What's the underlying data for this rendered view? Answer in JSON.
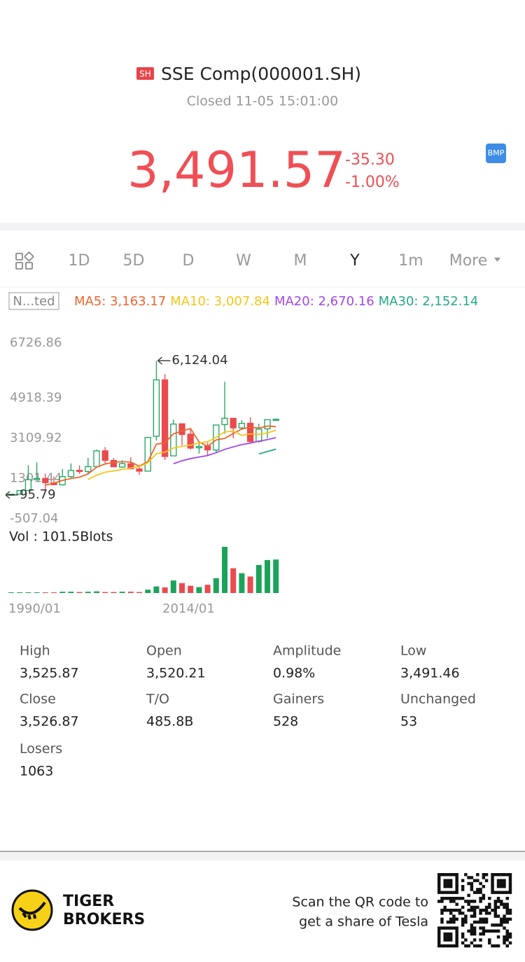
{
  "header": {
    "badge": "SH",
    "title": "SSE Comp(000001.SH)",
    "status": "Closed 11-05 15:01:00",
    "price": "3,491.57",
    "change": "-35.30",
    "change_pct": "-1.00%",
    "bmp": "BMP"
  },
  "tabs": [
    "1D",
    "5D",
    "D",
    "W",
    "M",
    "Y",
    "1m",
    "More"
  ],
  "active_tab": 5,
  "chart_data": {
    "type": "candlestick",
    "adjust_label": "N...ted",
    "ma": [
      {
        "label": "MA5: 3,163.17",
        "color": "#f0642d",
        "values": [
          null,
          null,
          null,
          null,
          536,
          621,
          746,
          829,
          892,
          1036,
          1339,
          1485,
          1558,
          1588,
          1568,
          1385,
          1591,
          2372,
          2437,
          2839,
          2969,
          3073,
          2475,
          2274,
          2565,
          2632,
          2853,
          3061,
          3136,
          3099,
          3188,
          3163
        ]
      },
      {
        "label": "MA10: 3,007.84",
        "color": "#f5c518",
        "values": [
          null,
          null,
          null,
          null,
          null,
          null,
          null,
          null,
          null,
          786,
          980,
          1116,
          1173,
          1240,
          1302,
          1362,
          1538,
          1945,
          2012,
          2204,
          2277,
          2332,
          2424,
          2485,
          2682,
          2920,
          2963,
          2768,
          2835,
          2812,
          2879,
          3008
        ]
      },
      {
        "label": "MA20: 2,670.16",
        "color": "#a347e6",
        "values": [
          null,
          null,
          null,
          null,
          null,
          null,
          null,
          null,
          null,
          null,
          null,
          null,
          null,
          null,
          null,
          null,
          null,
          null,
          null,
          1495,
          1629,
          1724,
          1798,
          1863,
          1992,
          2141,
          2251,
          2356,
          2424,
          2508,
          2578,
          2670
        ]
      },
      {
        "label": "MA30: 2,152.14",
        "color": "#23a88a",
        "values": [
          null,
          null,
          null,
          null,
          null,
          null,
          null,
          null,
          null,
          null,
          null,
          null,
          null,
          null,
          null,
          null,
          null,
          null,
          null,
          null,
          null,
          null,
          null,
          null,
          null,
          null,
          null,
          null,
          null,
          1934,
          2045,
          2152
        ]
      }
    ],
    "ylim": [
      -507.04,
      6726.86
    ],
    "yticks": [
      6726.86,
      4918.39,
      3109.92,
      1301.44,
      -507.04
    ],
    "max_label": "6,124.04",
    "min_label": "95.79",
    "up_color": "#1ca35b",
    "down_color": "#ea4b4f",
    "candles": {
      "open": [
        96,
        127,
        293,
        780,
        833,
        637,
        550,
        914,
        1200,
        1144,
        1368,
        2077,
        1643,
        1347,
        1492,
        1261,
        1163,
        2728,
        5265,
        1849,
        3289,
        2825,
        2212,
        2289,
        2112,
        3258,
        3536,
        3105,
        3314,
        2497,
        3066,
        3474
      ],
      "close": [
        128,
        292,
        780,
        833,
        647,
        555,
        917,
        1194,
        1146,
        1366,
        2073,
        1646,
        1357,
        1497,
        1266,
        1161,
        2675,
        5262,
        1821,
        3277,
        2808,
        2199,
        2269,
        2116,
        3235,
        3539,
        3104,
        3307,
        2494,
        3050,
        3473,
        3492
      ],
      "high": [
        128,
        292,
        1429,
        1558,
        1052,
        926,
        1258,
        1510,
        1422,
        1756,
        2125,
        2245,
        1748,
        1649,
        1783,
        1328,
        2698,
        6124,
        5522,
        3478,
        3306,
        3067,
        2478,
        2444,
        3239,
        5178,
        3538,
        3450,
        3587,
        3288,
        3474,
        3526
      ],
      "low": [
        96,
        105,
        293,
        750,
        325,
        524,
        512,
        870,
        1043,
        1047,
        1361,
        1514,
        1339,
        1307,
        1259,
        998,
        1161,
        2541,
        1664,
        1844,
        2319,
        2134,
        1949,
        1849,
        1974,
        2850,
        2638,
        3016,
        2440,
        2440,
        2646,
        3450
      ]
    },
    "volume": {
      "label": "Vol  : 101.5Blots",
      "values": [
        0.1,
        0.5,
        1,
        1.5,
        2,
        1.5,
        4,
        4,
        3,
        4,
        5,
        3,
        3,
        4,
        4,
        3,
        10,
        20,
        17,
        38,
        30,
        22,
        18,
        25,
        45,
        140,
        75,
        60,
        50,
        85,
        100,
        101.5
      ]
    },
    "x_labels": [
      "1990/01",
      "2014/01"
    ]
  },
  "stats": [
    {
      "label": "High",
      "value": "3,525.87"
    },
    {
      "label": "Open",
      "value": "3,520.21"
    },
    {
      "label": "Amplitude",
      "value": "0.98%"
    },
    {
      "label": "Low",
      "value": "3,491.46"
    },
    {
      "label": "Close",
      "value": "3,526.87"
    },
    {
      "label": "T/O",
      "value": "485.8B"
    },
    {
      "label": "Gainers",
      "value": "528"
    },
    {
      "label": "Unchanged",
      "value": "53"
    },
    {
      "label": "Losers",
      "value": "1063"
    }
  ],
  "footer": {
    "brand_line1": "TIGER",
    "brand_line2": "BROKERS",
    "promo_line1": "Scan the QR code to",
    "promo_line2": "get a share of Tesla"
  }
}
